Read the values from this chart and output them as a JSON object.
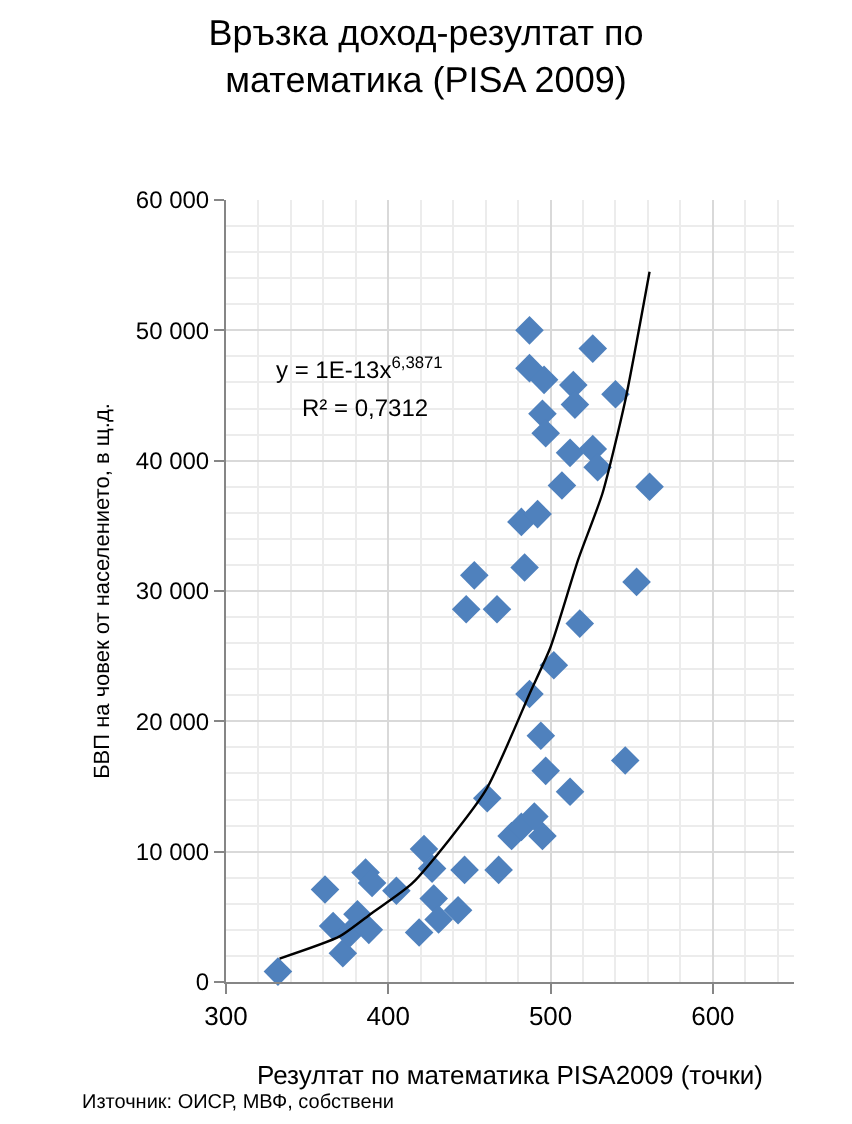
{
  "chart_data": {
    "type": "scatter",
    "title": "Връзка доход-резултат по математика (PISA 2009)",
    "xlabel": "Резултат по математика PISA2009 (точки)",
    "ylabel": "БВП на човек от населението, в щ.д.",
    "annotations": [
      "y = 1E-13x$^{6,3871}$",
      "R² = 0,7312",
      "Източник: ОИСР, МВФ, собствени"
    ],
    "xlim": [
      300,
      650
    ],
    "xticks": [
      300,
      400,
      500,
      600
    ],
    "ylim": [
      0,
      60000
    ],
    "yticks": [
      {
        "value": 0,
        "label": "0"
      },
      {
        "value": 10000,
        "label": "10 000"
      },
      {
        "value": 20000,
        "label": "20 000"
      },
      {
        "value": 30000,
        "label": "30 000"
      },
      {
        "value": 40000,
        "label": "40 000"
      },
      {
        "value": 50000,
        "label": "50 000"
      },
      {
        "value": 60000,
        "label": "60 000"
      }
    ],
    "grid": true,
    "marker": "diamond",
    "series": [
      {
        "color": "#4f81bd",
        "x": [
          332,
          372,
          361,
          366,
          376,
          381,
          388,
          386,
          390,
          405,
          419,
          422,
          427,
          428,
          431,
          443,
          447,
          468,
          461,
          476,
          482,
          490,
          495,
          512,
          497,
          494,
          487,
          502,
          518,
          546,
          553,
          448,
          467,
          453,
          484,
          487,
          526,
          487,
          496,
          514,
          540,
          515,
          495,
          497,
          512,
          526,
          529,
          507,
          561,
          482,
          492
        ],
        "values": [
          800,
          2200,
          7100,
          4300,
          3700,
          5200,
          4000,
          8400,
          7600,
          7000,
          3800,
          10200,
          8700,
          6400,
          4800,
          5500,
          8600,
          8600,
          14100,
          11200,
          11900,
          12700,
          11200,
          14600,
          16200,
          18900,
          22100,
          24300,
          27500,
          17000,
          30700,
          28600,
          28600,
          31200,
          31800,
          50000,
          48600,
          47100,
          46200,
          45800,
          45100,
          44300,
          43600,
          42100,
          40600,
          40900,
          39500,
          38100,
          38000,
          35300,
          35900
        ]
      },
      {
        "type": "line",
        "color": "#000000",
        "marker": "none",
        "x": [
          333,
          370,
          390,
          415,
          460,
          487,
          500,
          517,
          532,
          546,
          561
        ],
        "values": [
          1800,
          3500,
          5300,
          7600,
          14700,
          22100,
          25700,
          32400,
          37500,
          44600,
          54500
        ]
      }
    ]
  }
}
